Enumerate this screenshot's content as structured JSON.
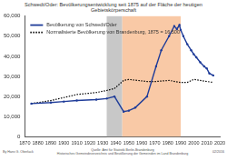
{
  "chart_data": {
    "type": "line",
    "title": "Schwedt/Oder: Bevölkerungsentwicklung seit 1875 auf der Fläche der heutigen Gebietskörperschaft",
    "series": [
      {
        "name": "Bevölkerung von Schwedt/Oder",
        "color": "#1f3c99",
        "marker": "circle",
        "line_style": "solid",
        "x": [
          1875,
          1890,
          1900,
          1910,
          1925,
          1933,
          1939,
          1946,
          1950,
          1955,
          1964,
          1971,
          1975,
          1981,
          1985,
          1987,
          1989,
          1990,
          1992,
          1995,
          1998,
          2000,
          2002,
          2005,
          2008,
          2010,
          2012,
          2015
        ],
        "values": [
          16500,
          17000,
          17500,
          18000,
          18500,
          19000,
          20000,
          12500,
          13000,
          14500,
          20000,
          35000,
          43000,
          50000,
          55000,
          53500,
          55500,
          53000,
          50000,
          46000,
          43000,
          41000,
          39500,
          37000,
          35000,
          34000,
          31500,
          30500
        ]
      },
      {
        "name": "Normalisierte Bevölkerung von Brandenburg, 1875 = 16.500",
        "color": "#000000",
        "marker": "none",
        "line_style": "dotted",
        "x": [
          1875,
          1890,
          1900,
          1910,
          1925,
          1933,
          1939,
          1946,
          1950,
          1964,
          1971,
          1981,
          1990,
          1995,
          2000,
          2005,
          2010,
          2015
        ],
        "values": [
          16500,
          18000,
          19500,
          21000,
          22000,
          23000,
          24000,
          28000,
          28500,
          27500,
          27500,
          28000,
          27000,
          27000,
          28500,
          28000,
          27500,
          27000
        ]
      }
    ],
    "xlim": [
      1870,
      2020
    ],
    "xticks": [
      1870,
      1880,
      1890,
      1900,
      1910,
      1920,
      1930,
      1940,
      1950,
      1960,
      1970,
      1980,
      1990,
      2000,
      2010,
      2020
    ],
    "ylim": [
      0,
      60000
    ],
    "yticks": [
      0,
      {
        "value": 10000,
        "label": "10,000"
      },
      {
        "value": 20000,
        "label": "20,000"
      },
      {
        "value": 30000,
        "label": "30,000"
      },
      {
        "value": 40000,
        "label": "40,000"
      },
      {
        "value": 50000,
        "label": "50,000"
      },
      {
        "value": 60000,
        "label": "60,000"
      }
    ],
    "grid": false,
    "legend": "upper left",
    "shaded_periods": [
      {
        "start": 1933,
        "end": 1945,
        "color": "#c8c8c8"
      },
      {
        "start": 1945,
        "end": 1990,
        "color": "#f9c9a6"
      }
    ],
    "footer": {
      "author": "By Hans G. Oberlack",
      "source": [
        "Quelle: Amt für Statistik Berlin-Brandenburg",
        "Historisches Gemeindeverzeichnis und Bevölkerung der Gemeinden im Land Brandenburg"
      ],
      "date": "02/2016"
    }
  }
}
